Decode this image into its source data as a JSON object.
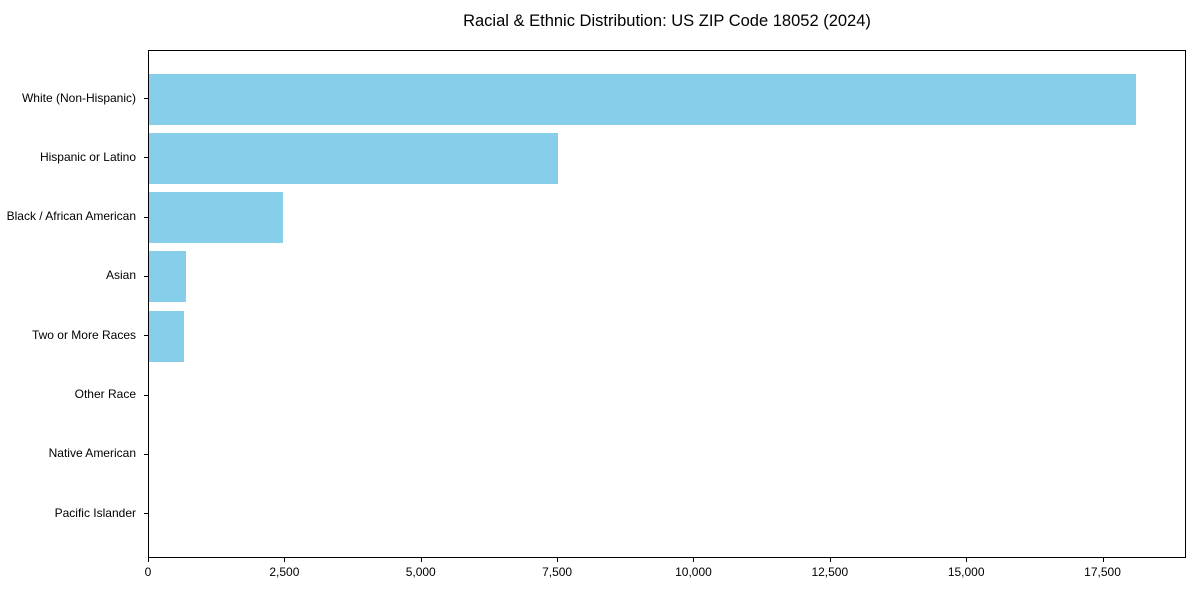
{
  "figure": {
    "background": "#ffffff"
  },
  "chart_data": {
    "type": "bar",
    "orientation": "horizontal",
    "title": "Racial & Ethnic Distribution: US ZIP Code 18052 (2024)",
    "categories": [
      "White (Non-Hispanic)",
      "Hispanic or Latino",
      "Black / African American",
      "Asian",
      "Two or More Races",
      "Other Race",
      "Native American",
      "Pacific Islander"
    ],
    "values": [
      18100,
      7500,
      2450,
      670,
      650,
      0,
      0,
      0
    ],
    "xlabel": "",
    "ylabel": "",
    "xlim": [
      0,
      19030
    ],
    "xticks": [
      0,
      2500,
      5000,
      7500,
      10000,
      12500,
      15000,
      17500
    ],
    "xtick_labels": [
      "0",
      "2,500",
      "5,000",
      "7,500",
      "10,000",
      "12,500",
      "15,000",
      "17,500"
    ],
    "bar_color": "#87CEEB",
    "axis_color": "#000000",
    "text_color": "#000000",
    "grid": false,
    "legend": null
  }
}
